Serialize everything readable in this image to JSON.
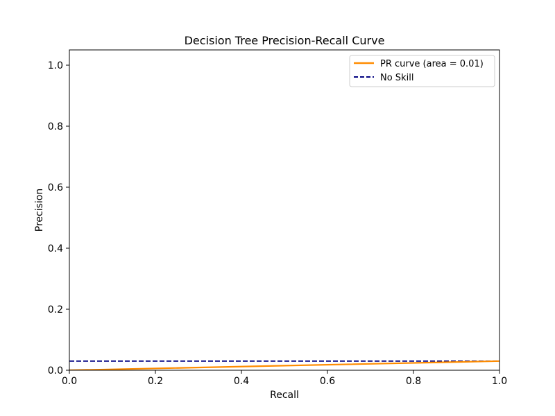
{
  "chart_data": {
    "type": "line",
    "title": "Decision Tree Precision-Recall Curve",
    "xlabel": "Recall",
    "ylabel": "Precision",
    "xlim": [
      0.0,
      1.0
    ],
    "ylim": [
      0.0,
      1.05
    ],
    "xticks": [
      0.0,
      0.2,
      0.4,
      0.6,
      0.8,
      1.0
    ],
    "yticks": [
      0.0,
      0.2,
      0.4,
      0.6,
      0.8,
      1.0
    ],
    "xtick_labels": [
      "0.0",
      "0.2",
      "0.4",
      "0.6",
      "0.8",
      "1.0"
    ],
    "ytick_labels": [
      "0.0",
      "0.2",
      "0.4",
      "0.6",
      "0.8",
      "1.0"
    ],
    "grid": false,
    "legend_position": "top-right",
    "series": [
      {
        "name": "PR curve (area = 0.01)",
        "color": "#ff8c00",
        "style": "solid",
        "x": [
          0.0,
          0.5,
          1.0
        ],
        "y": [
          0.0,
          0.015,
          0.03
        ]
      },
      {
        "name": "No Skill",
        "color": "#000080",
        "style": "dashed",
        "x": [
          0.0,
          1.0
        ],
        "y": [
          0.03,
          0.03
        ]
      }
    ]
  }
}
